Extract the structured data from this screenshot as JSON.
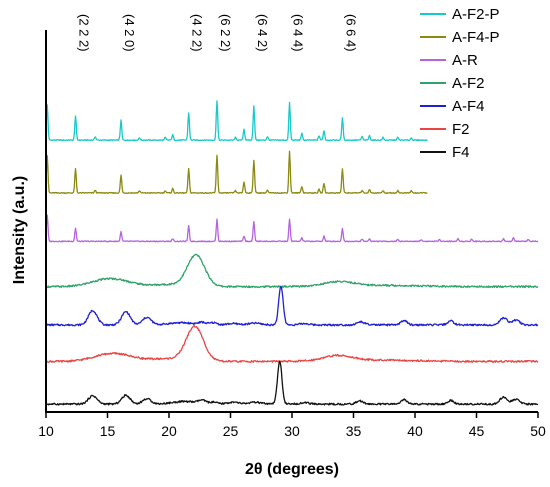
{
  "chart_data": {
    "type": "line",
    "xlabel": "2θ (degrees)",
    "ylabel": "Intensity (a.u.)",
    "xlim": [
      10,
      50
    ],
    "xticks": [
      10,
      15,
      20,
      25,
      30,
      35,
      40,
      45,
      50
    ],
    "y_ticks_shown": false,
    "grid": false,
    "legend_position": "top-right",
    "legend": [
      "A-F2-P",
      "A-F4-P",
      "A-R",
      "A-F2",
      "A-F4",
      "F2",
      "F4"
    ],
    "annotations": [
      {
        "text": "(2 2 2)",
        "x": 12.4
      },
      {
        "text": "(4 2 0)",
        "x": 16.1
      },
      {
        "text": "(4 2 2)",
        "x": 21.6
      },
      {
        "text": "(6 2 2)",
        "x": 23.9
      },
      {
        "text": "(6 4 2)",
        "x": 26.9
      },
      {
        "text": "(6 4 4)",
        "x": 29.8
      },
      {
        "text": "(6 6 4)",
        "x": 34.1
      }
    ],
    "series": [
      {
        "name": "A-F2-P",
        "color": "#17c9c9",
        "kind": "sticks",
        "x_range": [
          10,
          41
        ],
        "offset": 6.0,
        "peaks": [
          [
            10.1,
            0.8
          ],
          [
            12.4,
            0.55
          ],
          [
            14.0,
            0.08
          ],
          [
            16.1,
            0.45
          ],
          [
            17.6,
            0.05
          ],
          [
            19.7,
            0.06
          ],
          [
            20.3,
            0.12
          ],
          [
            21.6,
            0.62
          ],
          [
            23.9,
            0.9
          ],
          [
            25.4,
            0.06
          ],
          [
            26.1,
            0.25
          ],
          [
            26.9,
            0.78
          ],
          [
            28.0,
            0.08
          ],
          [
            29.8,
            0.85
          ],
          [
            30.8,
            0.15
          ],
          [
            32.2,
            0.1
          ],
          [
            32.6,
            0.22
          ],
          [
            34.1,
            0.5
          ],
          [
            35.7,
            0.08
          ],
          [
            36.3,
            0.1
          ],
          [
            37.4,
            0.06
          ],
          [
            38.6,
            0.06
          ],
          [
            39.7,
            0.05
          ]
        ]
      },
      {
        "name": "A-F4-P",
        "color": "#8a8a10",
        "kind": "sticks",
        "x_range": [
          10,
          41
        ],
        "offset": 4.8,
        "peaks": [
          [
            10.1,
            0.85
          ],
          [
            12.4,
            0.55
          ],
          [
            14.0,
            0.06
          ],
          [
            16.1,
            0.4
          ],
          [
            17.6,
            0.05
          ],
          [
            19.7,
            0.05
          ],
          [
            20.3,
            0.1
          ],
          [
            21.6,
            0.55
          ],
          [
            23.9,
            0.85
          ],
          [
            25.4,
            0.05
          ],
          [
            26.1,
            0.25
          ],
          [
            26.9,
            0.75
          ],
          [
            28.0,
            0.06
          ],
          [
            29.8,
            0.95
          ],
          [
            30.8,
            0.15
          ],
          [
            32.2,
            0.08
          ],
          [
            32.6,
            0.22
          ],
          [
            34.1,
            0.55
          ],
          [
            35.7,
            0.06
          ],
          [
            36.3,
            0.08
          ],
          [
            37.4,
            0.05
          ],
          [
            38.6,
            0.05
          ],
          [
            39.7,
            0.05
          ]
        ]
      },
      {
        "name": "A-R",
        "color": "#b563e0",
        "kind": "sticks",
        "x_range": [
          10,
          50
        ],
        "offset": 3.7,
        "peaks": [
          [
            10.1,
            0.6
          ],
          [
            12.4,
            0.3
          ],
          [
            16.1,
            0.22
          ],
          [
            20.3,
            0.06
          ],
          [
            21.6,
            0.35
          ],
          [
            23.9,
            0.5
          ],
          [
            26.1,
            0.12
          ],
          [
            26.9,
            0.45
          ],
          [
            29.8,
            0.5
          ],
          [
            30.8,
            0.08
          ],
          [
            32.6,
            0.12
          ],
          [
            34.1,
            0.3
          ],
          [
            35.7,
            0.05
          ],
          [
            36.3,
            0.06
          ],
          [
            38.6,
            0.05
          ],
          [
            40.5,
            0.04
          ],
          [
            42.0,
            0.05
          ],
          [
            43.5,
            0.06
          ],
          [
            44.6,
            0.05
          ],
          [
            47.2,
            0.06
          ],
          [
            48.0,
            0.08
          ],
          [
            49.2,
            0.04
          ]
        ]
      },
      {
        "name": "A-F2",
        "color": "#2ea36a",
        "kind": "profile",
        "x_range": [
          10,
          50
        ],
        "offset": 2.65,
        "baseline": 0.04,
        "humps": [
          [
            14.6,
            0.12,
            1.2
          ],
          [
            16.1,
            0.1,
            1.2
          ],
          [
            20.2,
            0.05,
            1.5
          ],
          [
            22.2,
            0.7,
            0.7
          ],
          [
            33.8,
            0.1,
            1.2
          ],
          [
            37.0,
            0.03,
            3
          ]
        ]
      },
      {
        "name": "A-F4",
        "color": "#1f1fd6",
        "kind": "profile",
        "x_range": [
          10,
          50
        ],
        "offset": 1.8,
        "baseline": 0.02,
        "humps": [
          [
            13.8,
            0.33,
            0.35
          ],
          [
            16.5,
            0.3,
            0.35
          ],
          [
            18.2,
            0.17,
            0.35
          ],
          [
            21.0,
            0.05,
            1.0
          ],
          [
            22.7,
            0.05,
            0.3
          ],
          [
            23.6,
            0.05,
            0.3
          ],
          [
            25.2,
            0.03,
            0.5
          ],
          [
            27.0,
            0.04,
            0.5
          ],
          [
            29.1,
            0.88,
            0.18
          ],
          [
            31.0,
            0.03,
            0.4
          ],
          [
            35.6,
            0.07,
            0.3
          ],
          [
            39.1,
            0.1,
            0.25
          ],
          [
            42.9,
            0.09,
            0.25
          ],
          [
            47.2,
            0.16,
            0.3
          ],
          [
            48.2,
            0.11,
            0.3
          ]
        ]
      },
      {
        "name": "F2",
        "color": "#e84545",
        "kind": "profile",
        "x_range": [
          10,
          50
        ],
        "offset": 0.95,
        "baseline": 0.04,
        "humps": [
          [
            14.6,
            0.1,
            1.2
          ],
          [
            16.1,
            0.12,
            1.2
          ],
          [
            19.8,
            0.06,
            1.5
          ],
          [
            22.1,
            0.78,
            0.7
          ],
          [
            33.7,
            0.12,
            1.2
          ],
          [
            37.0,
            0.03,
            3
          ]
        ]
      },
      {
        "name": "F4",
        "color": "#111111",
        "kind": "profile",
        "x_range": [
          10,
          50
        ],
        "offset": 0.0,
        "baseline": 0.02,
        "humps": [
          [
            13.8,
            0.19,
            0.35
          ],
          [
            16.5,
            0.2,
            0.35
          ],
          [
            18.2,
            0.12,
            0.35
          ],
          [
            21.3,
            0.06,
            1.0
          ],
          [
            22.7,
            0.07,
            0.3
          ],
          [
            23.6,
            0.04,
            0.3
          ],
          [
            25.2,
            0.04,
            0.5
          ],
          [
            27.0,
            0.04,
            0.5
          ],
          [
            29.0,
            0.98,
            0.18
          ],
          [
            31.0,
            0.03,
            0.4
          ],
          [
            35.5,
            0.07,
            0.3
          ],
          [
            39.1,
            0.1,
            0.25
          ],
          [
            42.9,
            0.08,
            0.25
          ],
          [
            47.2,
            0.16,
            0.3
          ],
          [
            48.2,
            0.11,
            0.3
          ]
        ]
      }
    ]
  }
}
